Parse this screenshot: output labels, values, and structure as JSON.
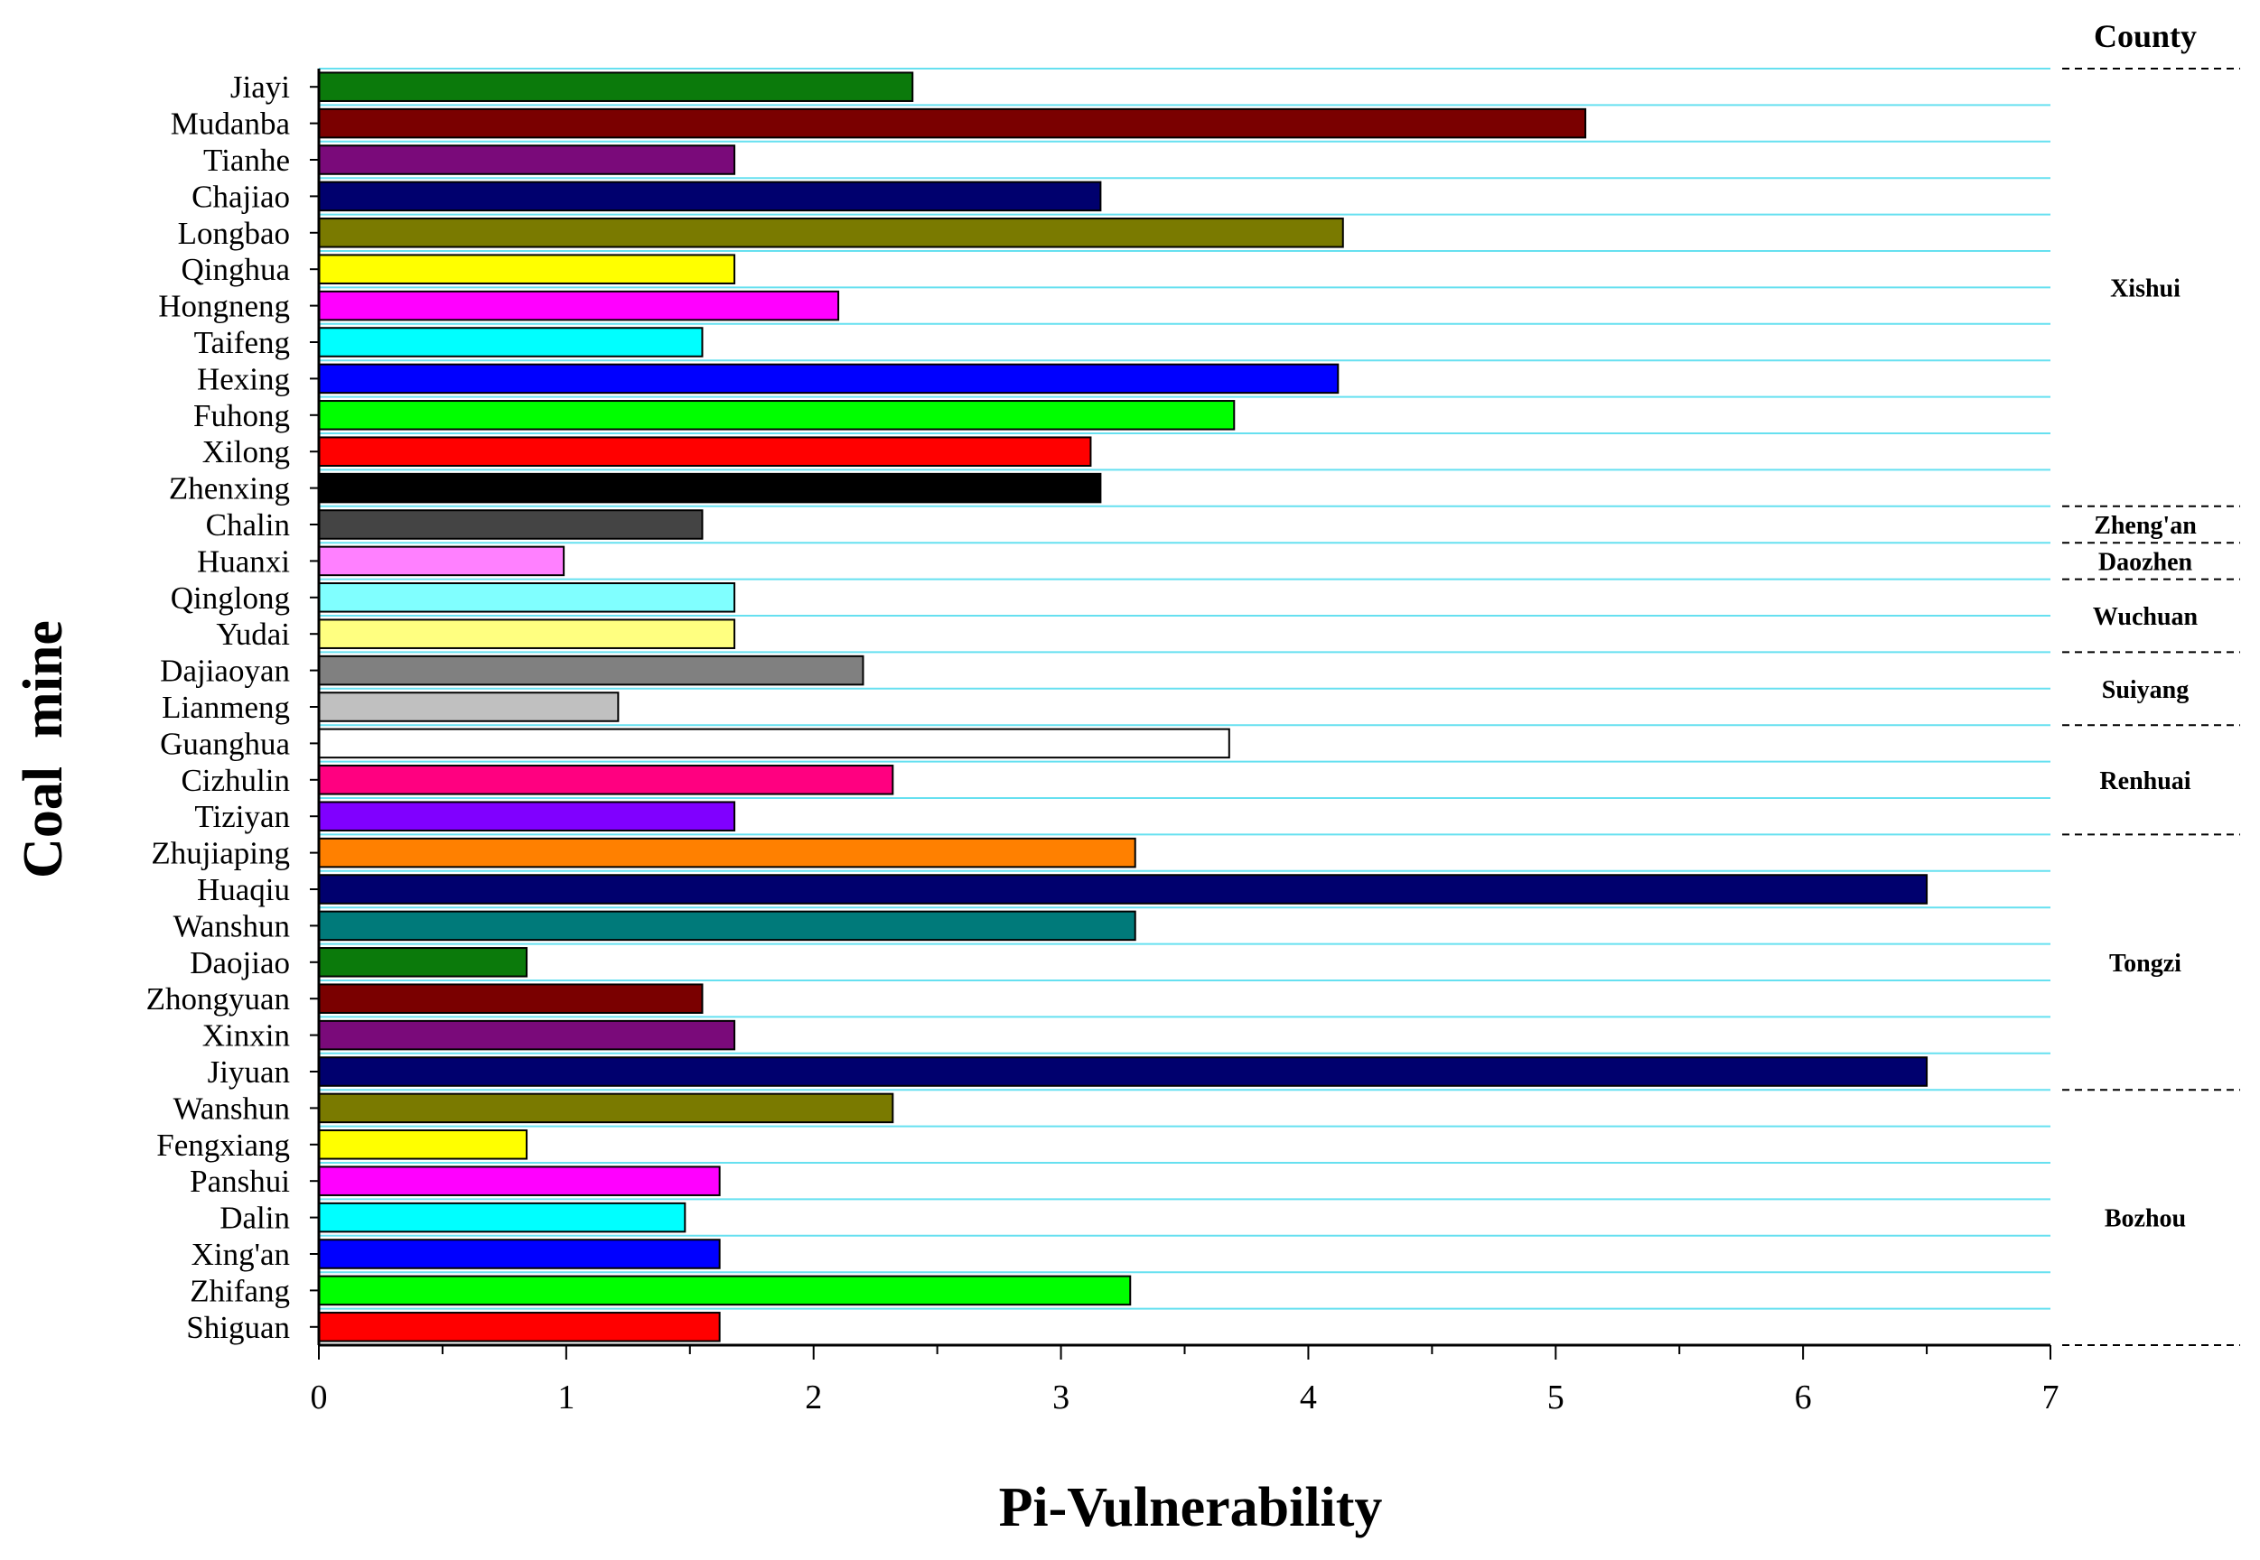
{
  "chart_data": {
    "type": "bar",
    "orientation": "horizontal",
    "xlabel": "Pi-Vulnerability",
    "ylabel": "Coal  mine",
    "xlim": [
      0,
      7
    ],
    "xticks": [
      "0",
      "1",
      "2",
      "3",
      "4",
      "5",
      "6",
      "7"
    ],
    "grid": "horizontal",
    "county_header": "County",
    "bars": [
      {
        "mine": "Jiayi",
        "value": 2.4,
        "color": "#0b7a0b"
      },
      {
        "mine": "Mudanba",
        "value": 5.12,
        "color": "#7a0000"
      },
      {
        "mine": "Tianhe",
        "value": 1.68,
        "color": "#7a0a7a"
      },
      {
        "mine": "Chajiao",
        "value": 3.16,
        "color": "#00006e"
      },
      {
        "mine": "Longbao",
        "value": 4.14,
        "color": "#7a7a00"
      },
      {
        "mine": "Qinghua",
        "value": 1.68,
        "color": "#ffff00"
      },
      {
        "mine": "Hongneng",
        "value": 2.1,
        "color": "#ff00ff"
      },
      {
        "mine": "Taifeng",
        "value": 1.55,
        "color": "#00ffff"
      },
      {
        "mine": "Hexing",
        "value": 4.12,
        "color": "#0000ff"
      },
      {
        "mine": "Fuhong",
        "value": 3.7,
        "color": "#00ff00"
      },
      {
        "mine": "Xilong",
        "value": 3.12,
        "color": "#ff0000"
      },
      {
        "mine": "Zhenxing",
        "value": 3.16,
        "color": "#000000"
      },
      {
        "mine": "Chalin",
        "value": 1.55,
        "color": "#444444"
      },
      {
        "mine": "Huanxi",
        "value": 0.99,
        "color": "#ff80ff"
      },
      {
        "mine": "Qinglong",
        "value": 1.68,
        "color": "#80ffff"
      },
      {
        "mine": "Yudai",
        "value": 1.68,
        "color": "#ffff80"
      },
      {
        "mine": "Dajiaoyan",
        "value": 2.2,
        "color": "#808080"
      },
      {
        "mine": "Lianmeng",
        "value": 1.21,
        "color": "#c0c0c0"
      },
      {
        "mine": "Guanghua",
        "value": 3.68,
        "color": "#ffffff"
      },
      {
        "mine": "Cizhulin",
        "value": 2.32,
        "color": "#ff0080"
      },
      {
        "mine": "Tiziyan",
        "value": 1.68,
        "color": "#8000ff"
      },
      {
        "mine": "Zhujiaping",
        "value": 3.3,
        "color": "#ff8000"
      },
      {
        "mine": "Huaqiu",
        "value": 6.5,
        "color": "#00006e"
      },
      {
        "mine": "Wanshun",
        "value": 3.3,
        "color": "#007a7a"
      },
      {
        "mine": "Daojiao",
        "value": 0.84,
        "color": "#0b7a0b"
      },
      {
        "mine": "Zhongyuan",
        "value": 1.55,
        "color": "#7a0000"
      },
      {
        "mine": "Xinxin",
        "value": 1.68,
        "color": "#7a0a7a"
      },
      {
        "mine": "Jiyuan",
        "value": 6.5,
        "color": "#00006e"
      },
      {
        "mine": "Wanshun",
        "value": 2.32,
        "color": "#7a7a00"
      },
      {
        "mine": "Fengxiang",
        "value": 0.84,
        "color": "#ffff00"
      },
      {
        "mine": "Panshui",
        "value": 1.62,
        "color": "#ff00ff"
      },
      {
        "mine": "Dalin",
        "value": 1.48,
        "color": "#00ffff"
      },
      {
        "mine": "Xing'an",
        "value": 1.62,
        "color": "#0000ff"
      },
      {
        "mine": "Zhifang",
        "value": 3.28,
        "color": "#00ff00"
      },
      {
        "mine": "Shiguan",
        "value": 1.62,
        "color": "#ff0000"
      }
    ],
    "counties": [
      {
        "name": "Xishui",
        "first": 0,
        "last": 11
      },
      {
        "name": "Zheng'an",
        "first": 12,
        "last": 12
      },
      {
        "name": "Daozhen",
        "first": 13,
        "last": 13
      },
      {
        "name": "Wuchuan",
        "first": 14,
        "last": 15
      },
      {
        "name": "Suiyang",
        "first": 16,
        "last": 17
      },
      {
        "name": "Renhuai",
        "first": 18,
        "last": 20
      },
      {
        "name": "Tongzi",
        "first": 21,
        "last": 27
      },
      {
        "name": "Bozhou",
        "first": 28,
        "last": 34
      }
    ],
    "gridline_color": "#66e0f0"
  }
}
